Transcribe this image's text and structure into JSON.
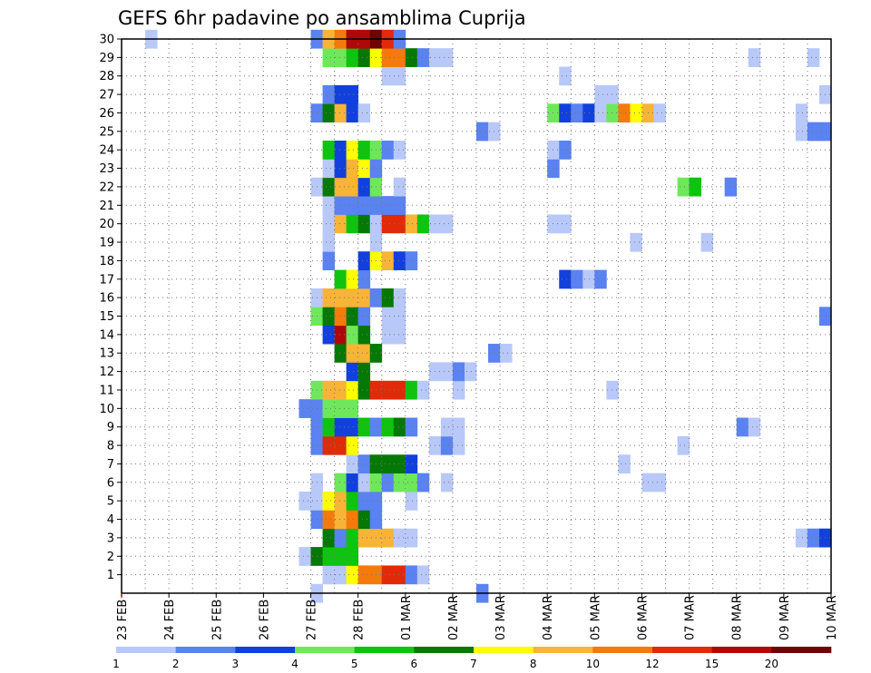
{
  "chart_data": {
    "type": "heatmap",
    "title": "GEFS 6hr padavine po ansamblima Cuprija",
    "xlabel": "",
    "ylabel": "",
    "x_ticks": [
      "23 FEB",
      "24 FEB",
      "25 FEB",
      "26 FEB",
      "27 FEB",
      "28 FEB",
      "01 MAR",
      "02 MAR",
      "03 MAR",
      "04 MAR",
      "05 MAR",
      "06 MAR",
      "07 MAR",
      "08 MAR",
      "09 MAR",
      "10 MAR"
    ],
    "y_ticks": [
      1,
      2,
      3,
      4,
      5,
      6,
      7,
      8,
      9,
      10,
      11,
      12,
      13,
      14,
      15,
      16,
      17,
      18,
      19,
      20,
      21,
      22,
      23,
      24,
      25,
      26,
      27,
      28,
      29,
      30
    ],
    "x_unit": "6-hour step from 23 FEB 00Z",
    "x_range": [
      0,
      60
    ],
    "y_range": [
      0,
      30
    ],
    "legend": {
      "position": "bottom",
      "thresholds": [
        1,
        2,
        3,
        4,
        5,
        6,
        7,
        8,
        10,
        12,
        15,
        20
      ],
      "colors": [
        "#b8c8f8",
        "#5a82f0",
        "#1140dc",
        "#6ee85a",
        "#0ec40e",
        "#057805",
        "#ffff00",
        "#f8b436",
        "#f57a0c",
        "#e02a08",
        "#b00808",
        "#6e0404"
      ]
    },
    "grid": true,
    "cells": [
      [
        0,
        16,
        1
      ],
      [
        0,
        30,
        2
      ],
      [
        1,
        17,
        1
      ],
      [
        1,
        18,
        1
      ],
      [
        1,
        19,
        7
      ],
      [
        1,
        20,
        9
      ],
      [
        1,
        21,
        9
      ],
      [
        1,
        22,
        10
      ],
      [
        1,
        23,
        10
      ],
      [
        1,
        24,
        2
      ],
      [
        1,
        25,
        1
      ],
      [
        2,
        15,
        1
      ],
      [
        2,
        16,
        6
      ],
      [
        2,
        17,
        5
      ],
      [
        2,
        18,
        5
      ],
      [
        2,
        19,
        5
      ],
      [
        3,
        17,
        6
      ],
      [
        3,
        18,
        2
      ],
      [
        3,
        19,
        5
      ],
      [
        3,
        20,
        8
      ],
      [
        3,
        21,
        8
      ],
      [
        3,
        22,
        8
      ],
      [
        3,
        23,
        1
      ],
      [
        3,
        24,
        1
      ],
      [
        3,
        57,
        1
      ],
      [
        3,
        58,
        2
      ],
      [
        3,
        59,
        3
      ],
      [
        4,
        16,
        2
      ],
      [
        4,
        17,
        9
      ],
      [
        4,
        18,
        8
      ],
      [
        4,
        19,
        9
      ],
      [
        4,
        20,
        6
      ],
      [
        4,
        21,
        2
      ],
      [
        5,
        15,
        1
      ],
      [
        5,
        16,
        1
      ],
      [
        5,
        17,
        7
      ],
      [
        5,
        18,
        8
      ],
      [
        5,
        19,
        5
      ],
      [
        5,
        20,
        2
      ],
      [
        5,
        21,
        2
      ],
      [
        5,
        24,
        1
      ],
      [
        6,
        16,
        1
      ],
      [
        6,
        18,
        4
      ],
      [
        6,
        19,
        3
      ],
      [
        6,
        20,
        1
      ],
      [
        6,
        21,
        4
      ],
      [
        6,
        22,
        2
      ],
      [
        6,
        23,
        4
      ],
      [
        6,
        24,
        4
      ],
      [
        6,
        25,
        2
      ],
      [
        6,
        27,
        1
      ],
      [
        6,
        44,
        1
      ],
      [
        6,
        45,
        1
      ],
      [
        7,
        19,
        1
      ],
      [
        7,
        20,
        2
      ],
      [
        7,
        21,
        6
      ],
      [
        7,
        22,
        6
      ],
      [
        7,
        23,
        6
      ],
      [
        7,
        24,
        3
      ],
      [
        7,
        42,
        1
      ],
      [
        8,
        16,
        2
      ],
      [
        8,
        17,
        10
      ],
      [
        8,
        18,
        10
      ],
      [
        8,
        19,
        7
      ],
      [
        8,
        26,
        1
      ],
      [
        8,
        27,
        2
      ],
      [
        8,
        28,
        1
      ],
      [
        8,
        47,
        1
      ],
      [
        9,
        16,
        2
      ],
      [
        9,
        17,
        5
      ],
      [
        9,
        18,
        3
      ],
      [
        9,
        19,
        3
      ],
      [
        9,
        20,
        5
      ],
      [
        9,
        21,
        2
      ],
      [
        9,
        22,
        5
      ],
      [
        9,
        23,
        6
      ],
      [
        9,
        24,
        2
      ],
      [
        9,
        27,
        1
      ],
      [
        9,
        28,
        1
      ],
      [
        9,
        52,
        2
      ],
      [
        9,
        53,
        1
      ],
      [
        10,
        15,
        2
      ],
      [
        10,
        16,
        2
      ],
      [
        10,
        17,
        4
      ],
      [
        10,
        18,
        4
      ],
      [
        10,
        19,
        4
      ],
      [
        11,
        16,
        4
      ],
      [
        11,
        17,
        8
      ],
      [
        11,
        18,
        8
      ],
      [
        11,
        19,
        7
      ],
      [
        11,
        20,
        6
      ],
      [
        11,
        21,
        10
      ],
      [
        11,
        22,
        10
      ],
      [
        11,
        23,
        10
      ],
      [
        11,
        24,
        5
      ],
      [
        11,
        25,
        1
      ],
      [
        11,
        28,
        1
      ],
      [
        11,
        41,
        1
      ],
      [
        12,
        19,
        3
      ],
      [
        12,
        20,
        6
      ],
      [
        12,
        26,
        1
      ],
      [
        12,
        27,
        1
      ],
      [
        12,
        28,
        2
      ],
      [
        12,
        29,
        1
      ],
      [
        13,
        18,
        6
      ],
      [
        13,
        19,
        8
      ],
      [
        13,
        20,
        8
      ],
      [
        13,
        21,
        6
      ],
      [
        13,
        31,
        2
      ],
      [
        13,
        32,
        1
      ],
      [
        14,
        17,
        3
      ],
      [
        14,
        18,
        11
      ],
      [
        14,
        19,
        4
      ],
      [
        14,
        20,
        6
      ],
      [
        14,
        22,
        1
      ],
      [
        14,
        23,
        1
      ],
      [
        15,
        16,
        4
      ],
      [
        15,
        17,
        6
      ],
      [
        15,
        18,
        9
      ],
      [
        15,
        19,
        6
      ],
      [
        15,
        20,
        2
      ],
      [
        15,
        22,
        1
      ],
      [
        15,
        23,
        1
      ],
      [
        15,
        59,
        2
      ],
      [
        16,
        16,
        1
      ],
      [
        16,
        17,
        8
      ],
      [
        16,
        18,
        8
      ],
      [
        16,
        19,
        8
      ],
      [
        16,
        20,
        8
      ],
      [
        16,
        21,
        2
      ],
      [
        16,
        22,
        6
      ],
      [
        16,
        23,
        1
      ],
      [
        17,
        18,
        5
      ],
      [
        17,
        19,
        7
      ],
      [
        17,
        20,
        2
      ],
      [
        17,
        37,
        3
      ],
      [
        17,
        38,
        2
      ],
      [
        17,
        39,
        1
      ],
      [
        17,
        40,
        2
      ],
      [
        18,
        17,
        2
      ],
      [
        18,
        20,
        3
      ],
      [
        18,
        21,
        7
      ],
      [
        18,
        22,
        8
      ],
      [
        18,
        23,
        3
      ],
      [
        18,
        24,
        2
      ],
      [
        19,
        17,
        1
      ],
      [
        19,
        21,
        1
      ],
      [
        19,
        43,
        1
      ],
      [
        19,
        49,
        1
      ],
      [
        20,
        17,
        1
      ],
      [
        20,
        18,
        8
      ],
      [
        20,
        19,
        5
      ],
      [
        20,
        20,
        6
      ],
      [
        20,
        21,
        1
      ],
      [
        20,
        22,
        10
      ],
      [
        20,
        23,
        10
      ],
      [
        20,
        24,
        8
      ],
      [
        20,
        25,
        5
      ],
      [
        20,
        26,
        1
      ],
      [
        20,
        27,
        1
      ],
      [
        20,
        36,
        1
      ],
      [
        20,
        37,
        1
      ],
      [
        21,
        17,
        1
      ],
      [
        21,
        18,
        2
      ],
      [
        21,
        19,
        2
      ],
      [
        21,
        20,
        2
      ],
      [
        21,
        21,
        2
      ],
      [
        21,
        22,
        2
      ],
      [
        21,
        23,
        2
      ],
      [
        22,
        16,
        1
      ],
      [
        22,
        17,
        6
      ],
      [
        22,
        18,
        8
      ],
      [
        22,
        19,
        8
      ],
      [
        22,
        20,
        3
      ],
      [
        22,
        21,
        4
      ],
      [
        22,
        23,
        1
      ],
      [
        22,
        47,
        4
      ],
      [
        22,
        48,
        5
      ],
      [
        22,
        51,
        2
      ],
      [
        23,
        17,
        1
      ],
      [
        23,
        18,
        3
      ],
      [
        23,
        19,
        8
      ],
      [
        23,
        20,
        7
      ],
      [
        23,
        21,
        2
      ],
      [
        23,
        36,
        2
      ],
      [
        24,
        17,
        5
      ],
      [
        24,
        18,
        3
      ],
      [
        24,
        19,
        7
      ],
      [
        24,
        20,
        5
      ],
      [
        24,
        21,
        4
      ],
      [
        24,
        22,
        2
      ],
      [
        24,
        23,
        1
      ],
      [
        24,
        36,
        1
      ],
      [
        24,
        37,
        2
      ],
      [
        25,
        30,
        2
      ],
      [
        25,
        31,
        1
      ],
      [
        25,
        57,
        1
      ],
      [
        25,
        58,
        2
      ],
      [
        25,
        59,
        2
      ],
      [
        26,
        16,
        2
      ],
      [
        26,
        17,
        6
      ],
      [
        26,
        18,
        8
      ],
      [
        26,
        19,
        3
      ],
      [
        26,
        20,
        1
      ],
      [
        26,
        36,
        4
      ],
      [
        26,
        37,
        3
      ],
      [
        26,
        38,
        2
      ],
      [
        26,
        39,
        3
      ],
      [
        26,
        40,
        1
      ],
      [
        26,
        41,
        4
      ],
      [
        26,
        42,
        9
      ],
      [
        26,
        43,
        7
      ],
      [
        26,
        44,
        8
      ],
      [
        26,
        45,
        1
      ],
      [
        26,
        57,
        1
      ],
      [
        27,
        17,
        2
      ],
      [
        27,
        18,
        3
      ],
      [
        27,
        19,
        3
      ],
      [
        27,
        40,
        1
      ],
      [
        27,
        41,
        1
      ],
      [
        27,
        59,
        1
      ],
      [
        28,
        22,
        1
      ],
      [
        28,
        23,
        1
      ],
      [
        28,
        37,
        1
      ],
      [
        29,
        17,
        4
      ],
      [
        29,
        18,
        4
      ],
      [
        29,
        19,
        5
      ],
      [
        29,
        20,
        6
      ],
      [
        29,
        21,
        7
      ],
      [
        29,
        22,
        9
      ],
      [
        29,
        23,
        9
      ],
      [
        29,
        24,
        6
      ],
      [
        29,
        25,
        2
      ],
      [
        29,
        26,
        1
      ],
      [
        29,
        27,
        1
      ],
      [
        29,
        53,
        1
      ],
      [
        29,
        58,
        1
      ],
      [
        30,
        2,
        1
      ],
      [
        30,
        16,
        2
      ],
      [
        30,
        17,
        8
      ],
      [
        30,
        18,
        9
      ],
      [
        30,
        19,
        11
      ],
      [
        30,
        20,
        11
      ],
      [
        30,
        21,
        12
      ],
      [
        30,
        22,
        10
      ],
      [
        30,
        23,
        2
      ]
    ]
  }
}
